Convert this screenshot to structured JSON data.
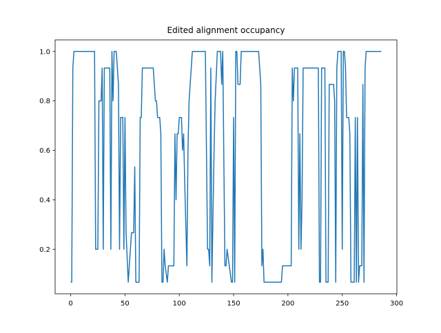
{
  "chart_data": {
    "type": "line",
    "title": "Edited alignment occupancy",
    "color": "#1f77b4",
    "x": [
      0,
      1,
      2,
      3,
      22,
      23,
      25,
      26,
      28,
      29,
      30,
      31,
      36,
      37,
      38,
      39,
      40,
      42,
      44,
      45,
      46,
      48,
      49,
      50,
      51,
      53,
      55,
      56,
      58,
      59,
      60,
      63,
      64,
      65,
      66,
      76,
      78,
      79,
      80,
      82,
      83,
      84,
      85,
      86,
      87,
      89,
      90,
      95,
      96,
      97,
      98,
      99,
      100,
      102,
      103,
      104,
      105,
      107,
      108,
      109,
      112,
      124,
      126,
      127,
      128,
      129,
      130,
      132,
      133,
      135,
      138,
      139,
      140,
      142,
      143,
      144,
      146,
      148,
      149,
      150,
      151,
      152,
      153,
      154,
      156,
      157,
      173,
      175,
      176,
      177,
      178,
      194,
      195,
      203,
      204,
      205,
      206,
      209,
      210,
      211,
      212,
      213,
      214,
      228,
      229,
      230,
      231,
      234,
      235,
      237,
      238,
      242,
      243,
      244,
      245,
      246,
      249,
      250,
      251,
      252,
      253,
      254,
      256,
      257,
      258,
      261,
      262,
      263,
      264,
      265,
      266,
      268,
      269,
      270,
      271,
      272,
      286
    ],
    "values": [
      0.067,
      0.067,
      0.933,
      1,
      1,
      0.2,
      0.2,
      0.8,
      0.8,
      0.933,
      0.2,
      0.933,
      0.933,
      0.2,
      1,
      0.8,
      1,
      1,
      0.867,
      0.2,
      0.733,
      0.733,
      0.2,
      0.733,
      0.267,
      0.067,
      0.2,
      0.267,
      0.267,
      0.533,
      0.067,
      0.067,
      0.733,
      0.733,
      0.933,
      0.933,
      0.8,
      0.8,
      0.733,
      0.733,
      0.667,
      0.067,
      0.067,
      0.2,
      0.133,
      0.067,
      0.133,
      0.133,
      0.667,
      0.4,
      0.667,
      0.667,
      0.733,
      0.733,
      0.6,
      0.667,
      0.467,
      0.133,
      0.6,
      0.8,
      1,
      1,
      0.2,
      0.2,
      0.133,
      0.933,
      0.067,
      0.6,
      0.8,
      1,
      1,
      0.867,
      1,
      0.133,
      0.133,
      0.2,
      0.133,
      0.067,
      0.067,
      0.733,
      0.067,
      1,
      1,
      0.867,
      0.867,
      1,
      1,
      0.867,
      0.133,
      0.2,
      0.067,
      0.067,
      0.133,
      0.133,
      0.933,
      0.8,
      0.933,
      0.933,
      0.2,
      0.667,
      0.2,
      0.4,
      0.933,
      0.933,
      0.067,
      0.067,
      0.933,
      0.933,
      0.067,
      0.067,
      0.867,
      0.867,
      0.8,
      0.067,
      0.933,
      1,
      1,
      0.2,
      1,
      1,
      0.933,
      0.733,
      0.733,
      0.667,
      0.067,
      0.067,
      0.733,
      0.067,
      0.733,
      0.067,
      0.133,
      0.133,
      0.867,
      0.067,
      0.933,
      1,
      1
    ],
    "xlim": [
      -14.3,
      300.3
    ],
    "ylim": [
      0.02,
      1.0467
    ],
    "xticks": [
      0,
      50,
      100,
      150,
      200,
      250,
      300
    ],
    "yticks": [
      0.2,
      0.4,
      0.6,
      0.8,
      {
        "value": 1,
        "label": "1.0"
      }
    ]
  }
}
